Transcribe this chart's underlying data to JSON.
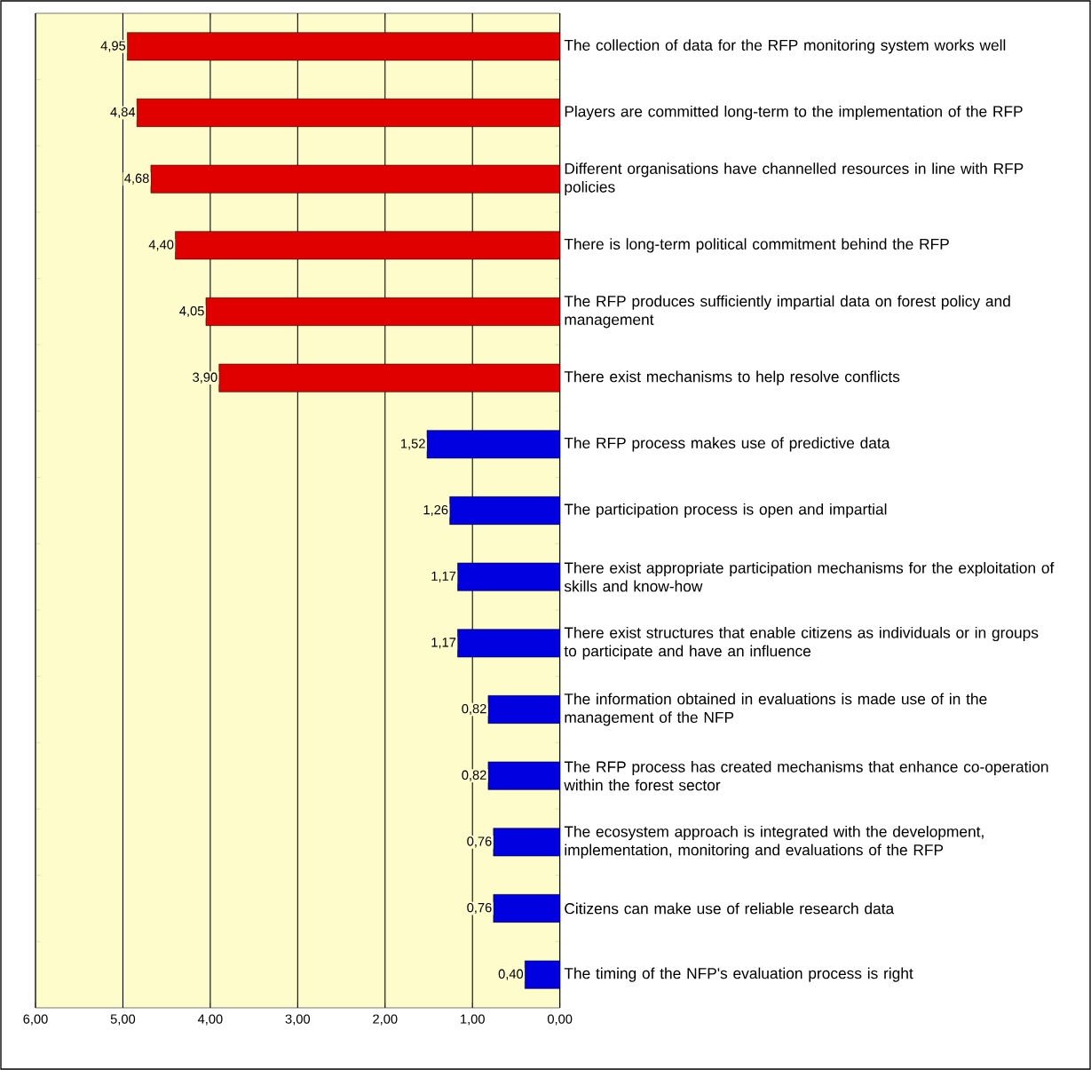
{
  "chart_data": {
    "type": "bar",
    "orientation": "horizontal",
    "categories": [
      "The collection of data for the RFP monitoring system works well",
      "Players are committed long-term to the implementation of the RFP",
      "Different organisations have channelled resources in line with RFP policies",
      "There is long-term political commitment behind the RFP",
      "The RFP produces sufficiently impartial data on forest policy and management",
      "There exist mechanisms to help resolve conflicts",
      "The RFP process makes use of predictive data",
      "The participation process is open and impartial",
      "There exist appropriate participation mechanisms for the exploitation of skills and know-how",
      "There exist structures that enable citizens as individuals or in groups to participate and have an influence",
      "The information obtained in evaluations is made use of in the management of the NFP",
      "The RFP process has created mechanisms that enhance co-operation within the forest sector",
      "The ecosystem approach is integrated with the development, implementation, monitoring and evaluations of the RFP",
      "Citizens can make use of reliable research data",
      "The timing of the NFP's evaluation process is right"
    ],
    "values": [
      4.95,
      4.84,
      4.68,
      4.4,
      4.05,
      3.9,
      1.52,
      1.26,
      1.17,
      1.17,
      0.82,
      0.82,
      0.76,
      0.76,
      0.4
    ],
    "value_labels": [
      "4,95",
      "4,84",
      "4,68",
      "4,40",
      "4,05",
      "3,90",
      "1,52",
      "1,26",
      "1,17",
      "1,17",
      "0,82",
      "0,82",
      "0,76",
      "0,76",
      "0,40"
    ],
    "colors": [
      "#e00000",
      "#e00000",
      "#e00000",
      "#e00000",
      "#e00000",
      "#e00000",
      "#0000e0",
      "#0000e0",
      "#0000e0",
      "#0000e0",
      "#0000e0",
      "#0000e0",
      "#0000e0",
      "#0000e0",
      "#0000e0"
    ],
    "xlim": [
      6,
      0
    ],
    "xticks": [
      {
        "value": 6,
        "label": "6,00"
      },
      {
        "value": 5,
        "label": "5,00"
      },
      {
        "value": 4,
        "label": "4,00"
      },
      {
        "value": 3,
        "label": "3,00"
      },
      {
        "value": 2,
        "label": "2,00"
      },
      {
        "value": 1,
        "label": "1,00"
      },
      {
        "value": 0,
        "label": "0,00"
      }
    ],
    "grid": "x"
  }
}
